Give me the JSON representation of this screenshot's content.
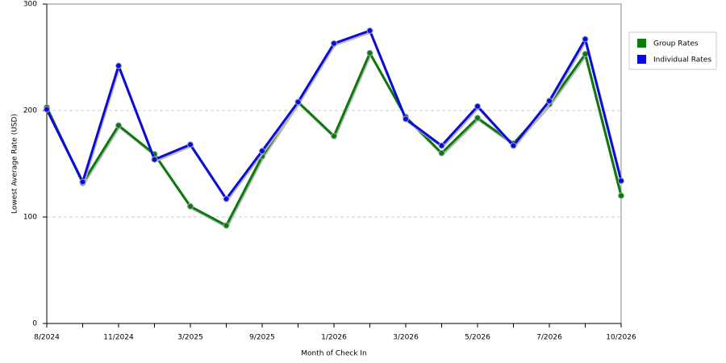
{
  "chart_data": {
    "type": "line",
    "xlabel": "Month of Check In",
    "ylabel": "Lowest Average Rate (USD)",
    "categories": [
      "8/2024",
      null,
      "11/2024",
      null,
      "3/2025",
      null,
      "9/2025",
      null,
      "1/2026",
      null,
      "3/2026",
      null,
      "5/2026",
      null,
      "7/2026",
      null,
      "10/2026"
    ],
    "series": [
      {
        "name": "Group Rates",
        "color": "#0b7a0b",
        "values": [
          203,
          132,
          186,
          159,
          110,
          92,
          157,
          208,
          176,
          254,
          194,
          160,
          193,
          169,
          206,
          253,
          120
        ]
      },
      {
        "name": "Individual Rates",
        "color": "#0b0bd9",
        "values": [
          201,
          133,
          242,
          154,
          168,
          117,
          162,
          208,
          263,
          275,
          192,
          167,
          204,
          167,
          209,
          267,
          134
        ]
      }
    ],
    "ylim": [
      0,
      300
    ],
    "yticks": [
      0,
      100,
      200,
      300
    ],
    "grid": true,
    "legend": "right"
  }
}
